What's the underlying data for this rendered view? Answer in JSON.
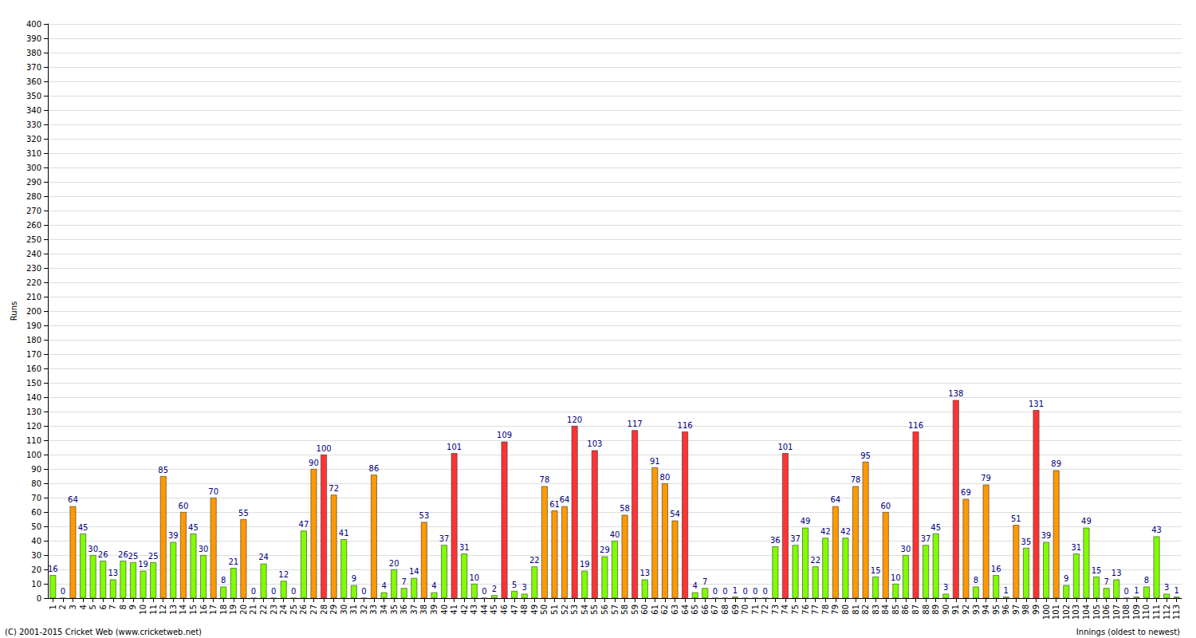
{
  "chart_data": {
    "type": "bar",
    "y_label": "Runs",
    "x_label": "Innings (oldest to newest)",
    "annotations": [
      "(C) 2001-2015 Cricket Web (www.cricketweb.net)"
    ],
    "categories": [
      "1",
      "2",
      "3",
      "4",
      "5",
      "6",
      "7",
      "8",
      "9",
      "10",
      "11",
      "12",
      "13",
      "14",
      "15",
      "16",
      "17",
      "18",
      "19",
      "20",
      "21",
      "22",
      "23",
      "24",
      "25",
      "26",
      "27",
      "28",
      "29",
      "30",
      "31",
      "32",
      "33",
      "34",
      "35",
      "36",
      "37",
      "38",
      "39",
      "40",
      "41",
      "42",
      "43",
      "44",
      "45",
      "46",
      "47",
      "48",
      "49",
      "50",
      "51",
      "52",
      "53",
      "54",
      "55",
      "56",
      "57",
      "58",
      "59",
      "60",
      "61",
      "62",
      "63",
      "64",
      "65",
      "66",
      "67",
      "68",
      "69",
      "70",
      "71",
      "72",
      "73",
      "74",
      "75",
      "76",
      "77",
      "78",
      "79",
      "80",
      "81",
      "82",
      "83",
      "84",
      "85",
      "86",
      "87",
      "88",
      "89",
      "90",
      "91",
      "92",
      "93",
      "94",
      "95",
      "96",
      "97",
      "98",
      "99",
      "100",
      "101",
      "102",
      "103",
      "104",
      "105",
      "106",
      "107",
      "108",
      "109",
      "110",
      "111",
      "112",
      "113"
    ],
    "values": [
      16,
      0,
      64,
      45,
      30,
      26,
      13,
      26,
      25,
      19,
      25,
      85,
      39,
      60,
      45,
      30,
      70,
      8,
      21,
      55,
      0,
      24,
      0,
      12,
      0,
      47,
      90,
      100,
      72,
      41,
      9,
      0,
      86,
      4,
      20,
      7,
      14,
      53,
      4,
      37,
      101,
      31,
      10,
      0,
      2,
      109,
      5,
      3,
      22,
      78,
      61,
      64,
      120,
      19,
      103,
      29,
      40,
      58,
      117,
      13,
      91,
      80,
      54,
      116,
      4,
      7,
      0,
      0,
      1,
      0,
      0,
      0,
      36,
      101,
      37,
      49,
      22,
      42,
      64,
      42,
      78,
      95,
      15,
      60,
      10,
      30,
      116,
      37,
      45,
      3,
      138,
      69,
      8,
      79,
      16,
      1,
      51,
      35,
      131,
      39,
      89,
      9,
      31,
      49,
      15,
      7,
      13,
      0,
      1,
      8,
      43,
      3,
      1
    ],
    "colors": [
      "#80ff00",
      "#80ff00",
      "#ff9900",
      "#80ff00",
      "#80ff00",
      "#80ff00",
      "#80ff00",
      "#80ff00",
      "#80ff00",
      "#80ff00",
      "#80ff00",
      "#ff9900",
      "#80ff00",
      "#ff9900",
      "#80ff00",
      "#80ff00",
      "#ff9900",
      "#80ff00",
      "#80ff00",
      "#ff9900",
      "#80ff00",
      "#80ff00",
      "#80ff00",
      "#80ff00",
      "#80ff00",
      "#80ff00",
      "#ff9900",
      "#ff3333",
      "#ff9900",
      "#80ff00",
      "#80ff00",
      "#80ff00",
      "#ff9900",
      "#80ff00",
      "#80ff00",
      "#80ff00",
      "#80ff00",
      "#ff9900",
      "#80ff00",
      "#80ff00",
      "#ff3333",
      "#80ff00",
      "#80ff00",
      "#80ff00",
      "#80ff00",
      "#ff3333",
      "#80ff00",
      "#80ff00",
      "#80ff00",
      "#ff9900",
      "#ff9900",
      "#ff9900",
      "#ff3333",
      "#80ff00",
      "#ff3333",
      "#80ff00",
      "#80ff00",
      "#ff9900",
      "#ff3333",
      "#80ff00",
      "#ff9900",
      "#ff9900",
      "#ff9900",
      "#ff3333",
      "#80ff00",
      "#80ff00",
      "#80ff00",
      "#80ff00",
      "#80ff00",
      "#80ff00",
      "#80ff00",
      "#80ff00",
      "#80ff00",
      "#ff3333",
      "#80ff00",
      "#80ff00",
      "#80ff00",
      "#80ff00",
      "#ff9900",
      "#80ff00",
      "#ff9900",
      "#ff9900",
      "#80ff00",
      "#ff9900",
      "#80ff00",
      "#80ff00",
      "#ff3333",
      "#80ff00",
      "#80ff00",
      "#80ff00",
      "#ff3333",
      "#ff9900",
      "#80ff00",
      "#ff9900",
      "#80ff00",
      "#80ff00",
      "#ff9900",
      "#80ff00",
      "#ff3333",
      "#80ff00",
      "#ff9900",
      "#80ff00",
      "#80ff00",
      "#80ff00",
      "#80ff00",
      "#80ff00",
      "#80ff00",
      "#80ff00",
      "#80ff00",
      "#80ff00",
      "#80ff00",
      "#80ff00",
      "#80ff00"
    ],
    "ylim": [
      0,
      400
    ],
    "yticks": [
      0,
      10,
      20,
      30,
      40,
      50,
      60,
      70,
      80,
      90,
      100,
      110,
      120,
      130,
      140,
      150,
      160,
      170,
      180,
      190,
      200,
      210,
      220,
      230,
      240,
      250,
      260,
      270,
      280,
      290,
      300,
      310,
      320,
      330,
      340,
      350,
      360,
      370,
      380,
      390,
      400
    ],
    "grid": true,
    "data_labels": true
  }
}
